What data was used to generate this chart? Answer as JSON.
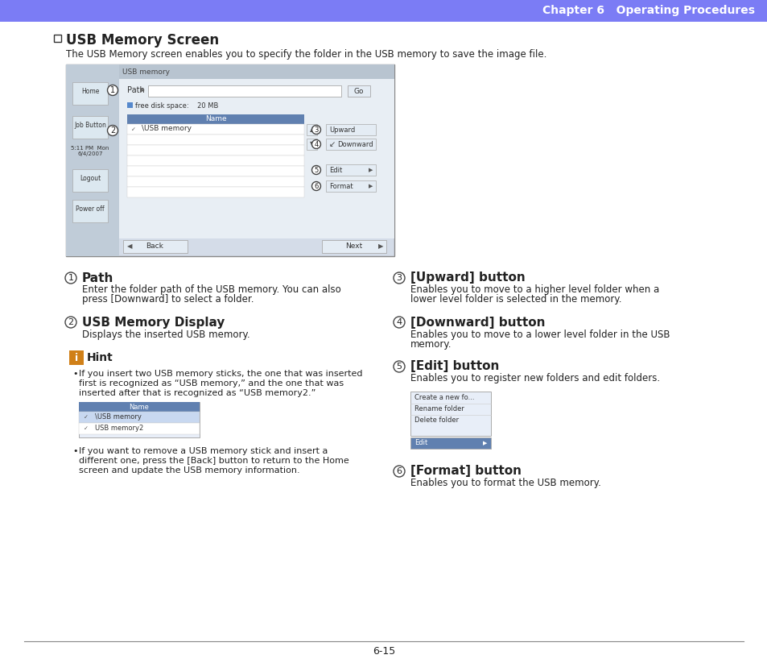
{
  "header_color": "#7b7cf5",
  "header_text": "Chapter 6   Operating Procedures",
  "header_text_color": "#ffffff",
  "bg_color": "#ffffff",
  "footer_text": "6-15",
  "screen_bg": "#d4dce8",
  "screen_sidebar_bg": "#c0ccd8",
  "screen_titlebar_bg": "#b8c4d0",
  "screen_content_bg": "#e8eef4",
  "list_header_color": "#6080b0",
  "list_row_bg": "#ffffff",
  "button_bg": "#e4ecf4",
  "button_border": "#aaaaaa",
  "right_btn_bg": "#e4ecf4",
  "hint_icon_color": "#d08018",
  "hint_ss_bg": "#e8eef8",
  "edit_ss_bg": "#e8eef8",
  "edit_btn_bg": "#6080b0",
  "circle_border": "#444444",
  "text_dark": "#222222",
  "text_mid": "#555555",
  "time_text": "5:11 PM  Mon\n6/4/2007"
}
